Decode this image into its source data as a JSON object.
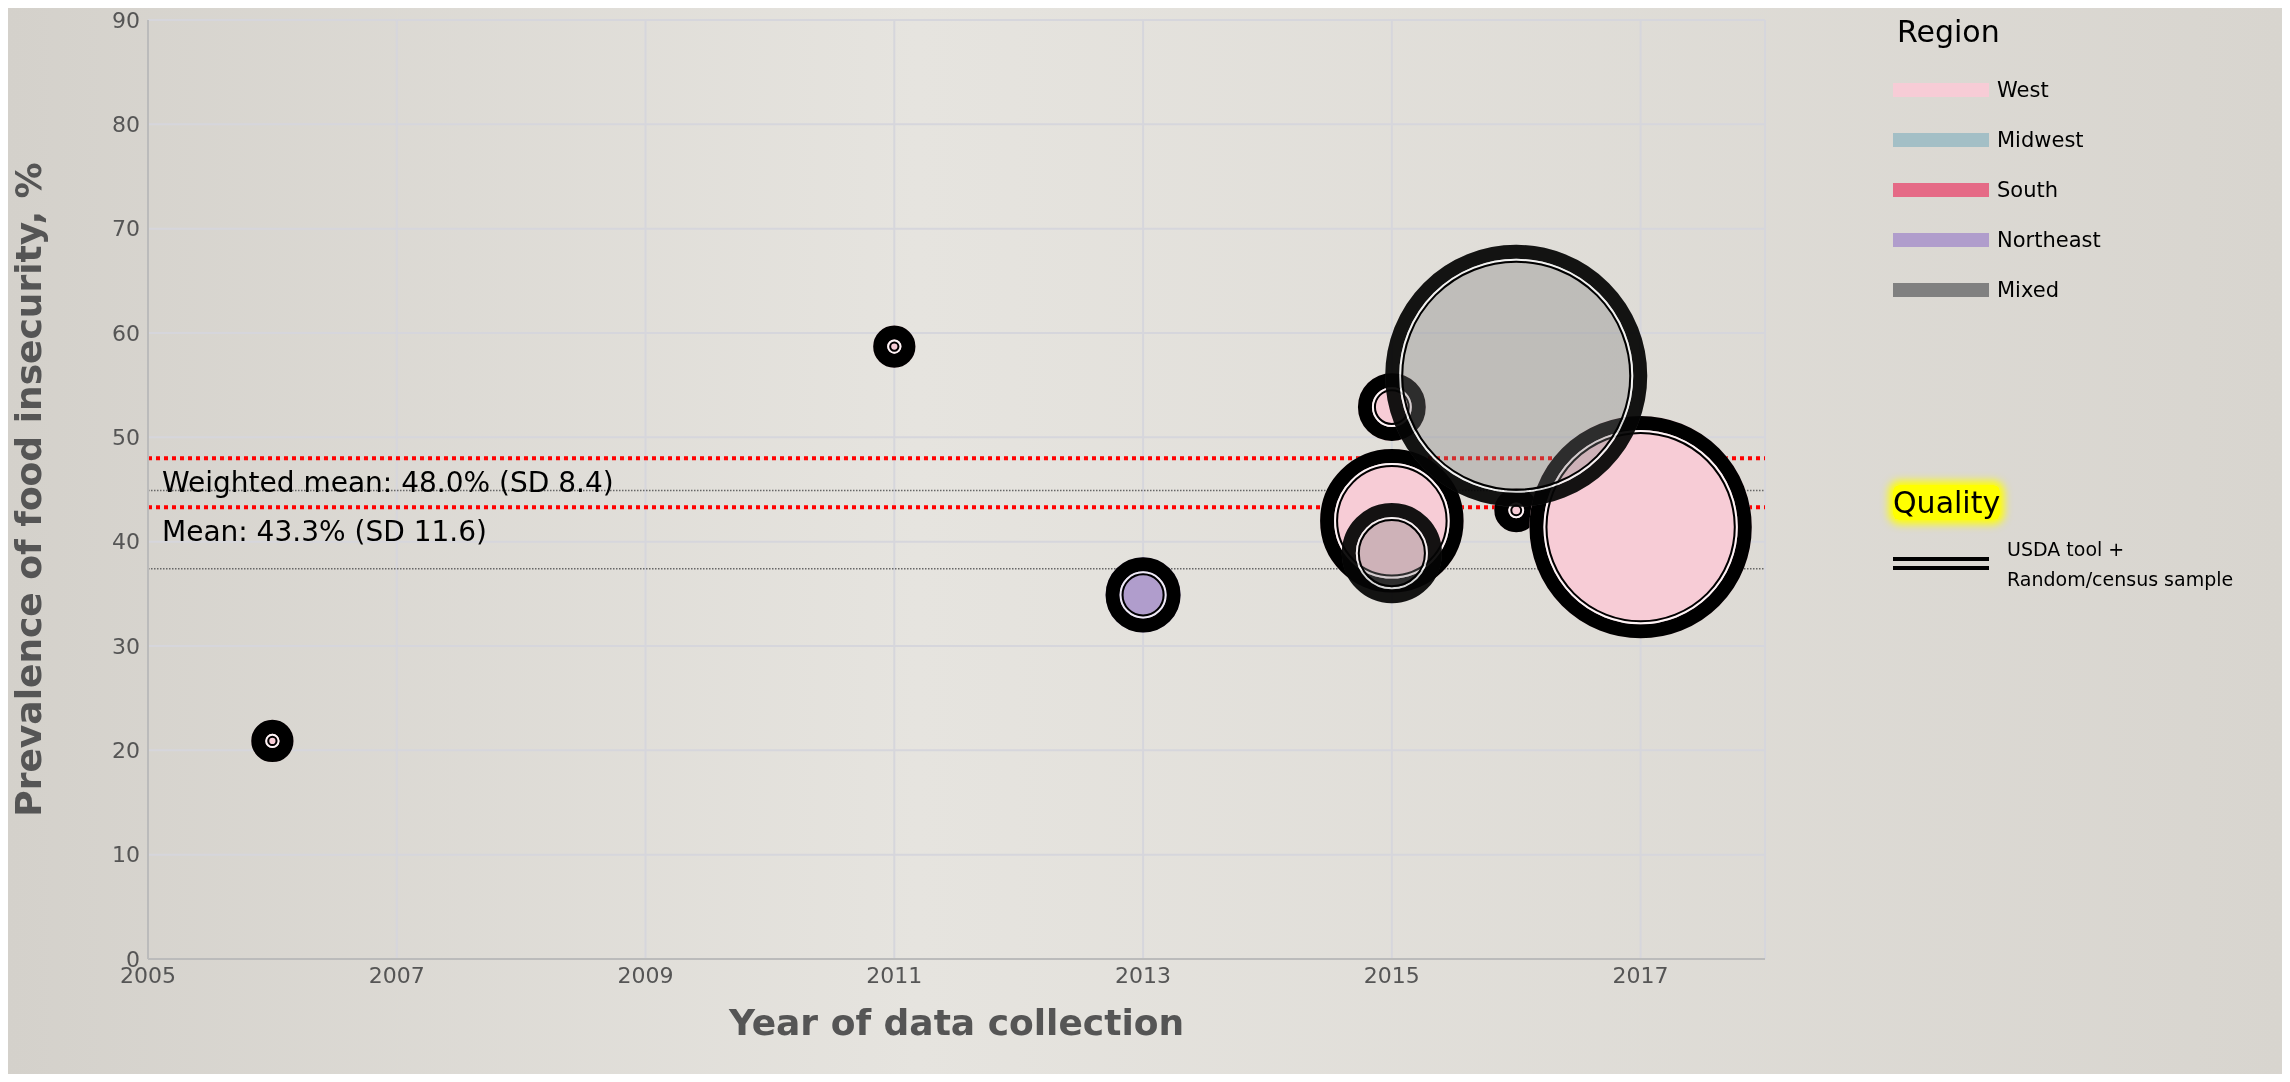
{
  "chart_data": {
    "type": "bubble",
    "xlabel": "Year of data collection",
    "ylabel": "Prevalence of food insecurity, %",
    "legend_title": "Region",
    "xlim": [
      2005,
      2018
    ],
    "xticks": [
      2005,
      2007,
      2009,
      2011,
      2013,
      2015,
      2017
    ],
    "ylim": [
      0,
      90
    ],
    "yticks": [
      0,
      10,
      20,
      30,
      40,
      50,
      60,
      70,
      80,
      90
    ],
    "grid": true,
    "legend": "top right",
    "series": [
      {
        "name": "West",
        "color": "#f7ccd6",
        "x": [
          2006,
          2011,
          2015,
          2015,
          2016,
          2017
        ],
        "values": [
          20.9,
          58.7,
          52.9,
          42.0,
          43.0,
          41.4
        ],
        "sizes": [
          0.026,
          0.026,
          0.067,
          0.3,
          0.028,
          0.72
        ]
      },
      {
        "name": "Midwest",
        "color": "#a3bfc6"
      },
      {
        "name": "South",
        "color": "#e56a86"
      },
      {
        "name": "Northeast",
        "color": "#b09dcc",
        "x": [
          2013
        ],
        "values": [
          34.9
        ],
        "sizes": [
          0.082
        ]
      },
      {
        "name": "Mixed",
        "color": "#808080",
        "x": [
          2015,
          2016
        ],
        "values": [
          38.9,
          55.9
        ],
        "sizes": [
          0.146,
          1
        ]
      }
    ],
    "ref_lines": [
      {
        "axis": "y",
        "value": 48.0,
        "label": "Weighted mean: 48.0% (SD 8.4)",
        "color": "#ff0000",
        "line_style": "dotted"
      },
      {
        "axis": "y",
        "value": 43.3,
        "label": "Mean: 43.3% (SD 11.6)",
        "color": "#ff0000",
        "line_style": "dotted"
      },
      {
        "axis": "y",
        "value": 44.9,
        "color": "#666666",
        "line_style": "dotted"
      },
      {
        "axis": "y",
        "value": 37.4,
        "color": "#666666",
        "line_style": "dotted"
      }
    ],
    "annotations": [
      "Quality",
      "USDA tool + Random/census sample"
    ]
  }
}
